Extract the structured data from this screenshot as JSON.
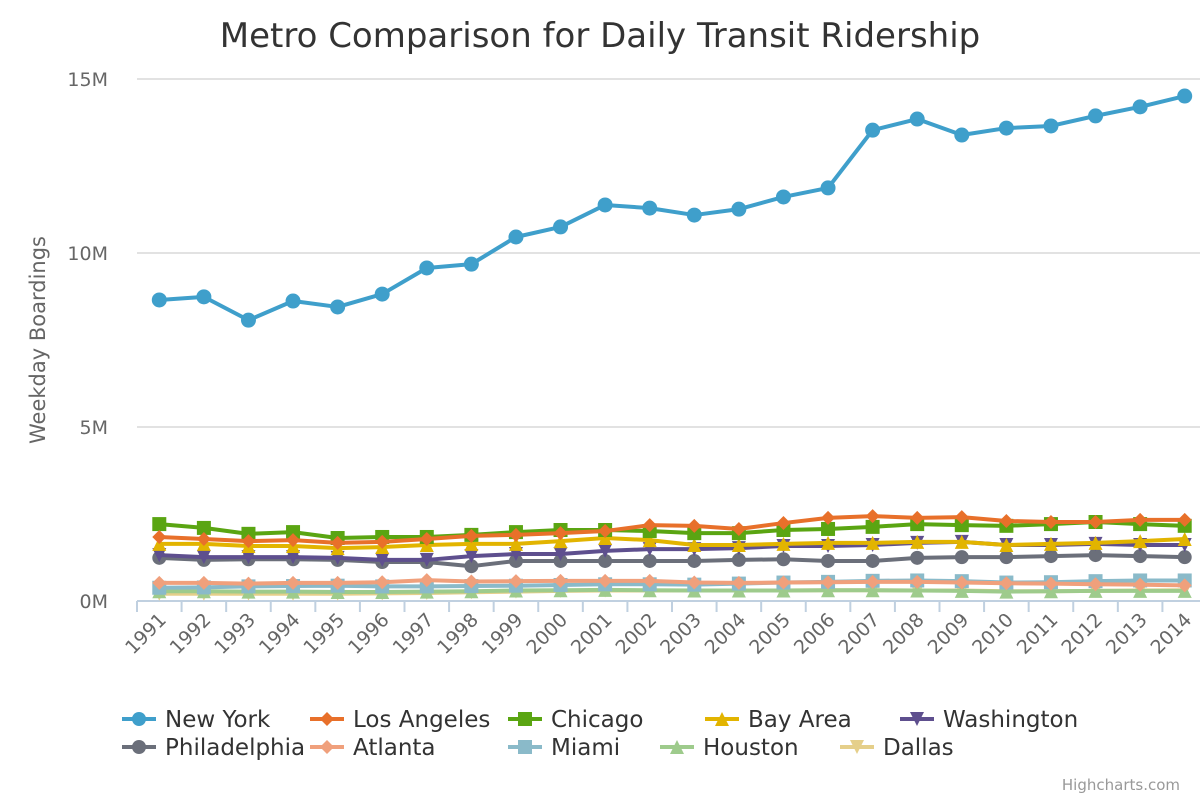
{
  "chart_data": {
    "type": "line",
    "title": "Metro Comparison for Daily Transit Ridership",
    "xlabel": "",
    "ylabel": "Weekday Boardings",
    "ylim": [
      0,
      15000000
    ],
    "yticks": [
      {
        "value": 0,
        "label": "0M"
      },
      {
        "value": 5000000,
        "label": "5M"
      },
      {
        "value": 10000000,
        "label": "10M"
      },
      {
        "value": 15000000,
        "label": "15M"
      }
    ],
    "grid": true,
    "legend_position": "bottom",
    "categories": [
      "1991",
      "1992",
      "1993",
      "1994",
      "1995",
      "1996",
      "1997",
      "1998",
      "1999",
      "2000",
      "2001",
      "2002",
      "2003",
      "2004",
      "2005",
      "2006",
      "2007",
      "2008",
      "2009",
      "2010",
      "2011",
      "2012",
      "2013",
      "2014"
    ],
    "series": [
      {
        "name": "New York",
        "color": "#3f9fcb",
        "marker": "circle",
        "values": [
          8650000,
          8740000,
          8070000,
          8620000,
          8450000,
          8820000,
          9570000,
          9680000,
          10460000,
          10750000,
          11380000,
          11290000,
          11090000,
          11260000,
          11610000,
          11870000,
          13530000,
          13850000,
          13390000,
          13590000,
          13650000,
          13940000,
          14200000,
          14510000
        ]
      },
      {
        "name": "Los Angeles",
        "color": "#e8702a",
        "marker": "diamond",
        "values": [
          1840000,
          1780000,
          1720000,
          1750000,
          1670000,
          1700000,
          1780000,
          1870000,
          1900000,
          1950000,
          2010000,
          2180000,
          2160000,
          2070000,
          2240000,
          2390000,
          2440000,
          2390000,
          2410000,
          2300000,
          2270000,
          2270000,
          2330000,
          2330000
        ]
      },
      {
        "name": "Chicago",
        "color": "#5aa512",
        "marker": "square",
        "values": [
          2210000,
          2100000,
          1930000,
          1980000,
          1810000,
          1840000,
          1840000,
          1900000,
          1980000,
          2040000,
          2040000,
          2010000,
          1950000,
          1950000,
          2040000,
          2070000,
          2130000,
          2210000,
          2180000,
          2160000,
          2210000,
          2270000,
          2210000,
          2160000
        ]
      },
      {
        "name": "Bay Area",
        "color": "#e2b400",
        "marker": "triangle",
        "values": [
          1640000,
          1640000,
          1580000,
          1580000,
          1520000,
          1550000,
          1610000,
          1640000,
          1640000,
          1720000,
          1810000,
          1750000,
          1610000,
          1610000,
          1640000,
          1670000,
          1670000,
          1700000,
          1700000,
          1610000,
          1640000,
          1670000,
          1720000,
          1780000
        ]
      },
      {
        "name": "Washington",
        "color": "#5e4f8e",
        "marker": "triangle-down",
        "values": [
          1320000,
          1260000,
          1260000,
          1260000,
          1240000,
          1180000,
          1180000,
          1290000,
          1350000,
          1350000,
          1440000,
          1490000,
          1490000,
          1520000,
          1580000,
          1580000,
          1610000,
          1670000,
          1700000,
          1610000,
          1610000,
          1640000,
          1610000,
          1610000
        ]
      },
      {
        "name": "Philadelphia",
        "color": "#6b6f7a",
        "marker": "circle",
        "values": [
          1240000,
          1180000,
          1200000,
          1200000,
          1180000,
          1120000,
          1120000,
          1000000,
          1150000,
          1150000,
          1150000,
          1150000,
          1150000,
          1180000,
          1200000,
          1150000,
          1150000,
          1240000,
          1260000,
          1260000,
          1290000,
          1320000,
          1290000,
          1260000
        ]
      },
      {
        "name": "Atlanta",
        "color": "#f0a07c",
        "marker": "diamond",
        "values": [
          520000,
          520000,
          500000,
          520000,
          520000,
          540000,
          600000,
          560000,
          570000,
          580000,
          580000,
          580000,
          530000,
          520000,
          530000,
          540000,
          550000,
          550000,
          530000,
          510000,
          500000,
          480000,
          470000,
          450000
        ]
      },
      {
        "name": "Miami",
        "color": "#8abac9",
        "marker": "square",
        "values": [
          380000,
          390000,
          420000,
          430000,
          440000,
          420000,
          420000,
          430000,
          440000,
          460000,
          480000,
          480000,
          470000,
          500000,
          530000,
          550000,
          580000,
          590000,
          570000,
          530000,
          540000,
          570000,
          590000,
          590000
        ]
      },
      {
        "name": "Houston",
        "color": "#9ecb8c",
        "marker": "triangle",
        "values": [
          280000,
          280000,
          270000,
          270000,
          260000,
          260000,
          270000,
          280000,
          300000,
          310000,
          320000,
          310000,
          300000,
          300000,
          300000,
          310000,
          310000,
          300000,
          290000,
          270000,
          280000,
          290000,
          290000,
          290000
        ]
      },
      {
        "name": "Dallas",
        "color": "#e5cf8a",
        "marker": "triangle-down",
        "values": [
          210000,
          210000,
          210000,
          210000,
          210000,
          220000,
          230000,
          250000,
          270000,
          290000,
          300000,
          300000,
          300000,
          300000,
          300000,
          310000,
          310000,
          300000,
          300000,
          280000,
          280000,
          290000,
          300000,
          310000
        ]
      }
    ]
  },
  "credit": "Highcharts.com"
}
